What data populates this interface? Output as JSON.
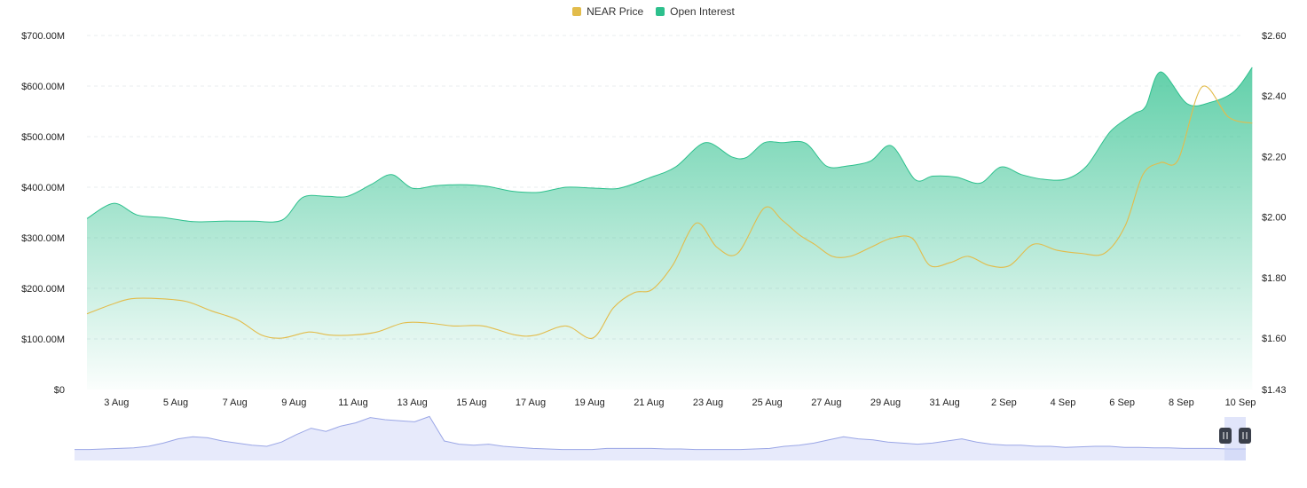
{
  "legend": {
    "price_label": "NEAR Price",
    "oi_label": "Open Interest"
  },
  "colors": {
    "price": "#E2BC4B",
    "open_interest": "#2DC08D",
    "navigator_fill": "#E7EAFB",
    "navigator_line": "#9AA6E6",
    "grid": "#E9ECEF",
    "handle": "#3A3F4B"
  },
  "chart_data": {
    "type": "area",
    "x_labels": [
      "3 Aug",
      "5 Aug",
      "7 Aug",
      "9 Aug",
      "11 Aug",
      "13 Aug",
      "15 Aug",
      "17 Aug",
      "19 Aug",
      "21 Aug",
      "23 Aug",
      "25 Aug",
      "27 Aug",
      "29 Aug",
      "31 Aug",
      "2 Sep",
      "4 Sep",
      "6 Sep",
      "8 Sep",
      "10 Sep"
    ],
    "x_range_days": [
      0,
      39
    ],
    "left_axis": {
      "ticks": [
        "$700.00M",
        "$600.00M",
        "$500.00M",
        "$400.00M",
        "$300.00M",
        "$200.00M",
        "$100.00M",
        "$0"
      ],
      "ylim": [
        0,
        700
      ]
    },
    "right_axis": {
      "ticks": [
        "$2.60",
        "$2.40",
        "$2.20",
        "$2.00",
        "$1.80",
        "$1.60",
        "$1.43"
      ],
      "ylim": [
        1.43,
        2.6
      ]
    },
    "series": [
      {
        "name": "Open Interest",
        "axis": "left",
        "unit": "$M",
        "x": [
          0,
          0.9,
          1.7,
          2.6,
          3.6,
          4.6,
          5.6,
          6.6,
          7.3,
          8.1,
          8.8,
          9.6,
          10.3,
          11,
          11.8,
          12.6,
          13.5,
          14.4,
          15.3,
          16.2,
          17.2,
          18,
          19,
          19.9,
          20.9,
          21.8,
          22.3,
          22.9,
          23.5,
          24.3,
          25,
          25.7,
          26.5,
          27.2,
          28,
          28.6,
          29.4,
          30.2,
          30.9,
          31.6,
          32.3,
          33.1,
          33.8,
          34.6,
          35.4,
          35.8,
          36.3,
          37.2,
          38,
          38.8,
          39.4
        ],
        "values": [
          338,
          368,
          345,
          340,
          332,
          333,
          333,
          335,
          380,
          382,
          382,
          405,
          425,
          398,
          403,
          405,
          402,
          392,
          390,
          400,
          398,
          398,
          418,
          440,
          488,
          460,
          459,
          488,
          488,
          487,
          442,
          442,
          452,
          482,
          415,
          422,
          420,
          408,
          440,
          425,
          416,
          416,
          442,
          510,
          545,
          560,
          628,
          565,
          568,
          590,
          637
        ]
      },
      {
        "name": "NEAR Price",
        "axis": "right",
        "unit": "$",
        "x": [
          0,
          0.8,
          1.5,
          2.5,
          3.4,
          4.2,
          5.1,
          5.9,
          6.6,
          7.5,
          8.2,
          9,
          9.8,
          10.7,
          11.5,
          12.4,
          13.4,
          14.5,
          15.2,
          16.2,
          17.1,
          17.8,
          18.5,
          19.1,
          19.8,
          20.6,
          21.3,
          22,
          22.9,
          23.5,
          24.1,
          24.6,
          25.2,
          25.8,
          26.5,
          27.2,
          27.9,
          28.5,
          29.2,
          29.8,
          30.5,
          31.2,
          32,
          32.8,
          33.6,
          34.4,
          35.1,
          35.7,
          36.3,
          36.9,
          37.7,
          38.6,
          39.4
        ],
        "values": [
          1.68,
          1.71,
          1.73,
          1.73,
          1.72,
          1.69,
          1.66,
          1.61,
          1.6,
          1.62,
          1.61,
          1.61,
          1.62,
          1.65,
          1.65,
          1.64,
          1.64,
          1.61,
          1.61,
          1.64,
          1.6,
          1.7,
          1.75,
          1.76,
          1.84,
          1.98,
          1.9,
          1.88,
          2.03,
          1.99,
          1.94,
          1.91,
          1.87,
          1.87,
          1.9,
          1.93,
          1.93,
          1.84,
          1.85,
          1.87,
          1.84,
          1.84,
          1.91,
          1.89,
          1.88,
          1.88,
          1.97,
          2.14,
          2.18,
          2.19,
          2.43,
          2.33,
          2.31
        ]
      }
    ],
    "navigator": {
      "x": [
        0,
        0.5,
        1,
        1.5,
        2,
        2.5,
        3,
        3.5,
        4,
        4.5,
        5,
        5.5,
        6,
        6.5,
        7,
        7.5,
        8,
        8.5,
        9,
        9.5,
        10,
        10.5,
        11,
        11.5,
        12,
        12.5,
        13,
        13.5,
        14,
        14.5,
        15,
        15.5,
        16,
        16.5,
        17,
        17.5,
        18,
        18.5,
        19,
        19.5,
        20,
        20.5,
        21,
        21.5,
        22,
        22.5,
        23,
        23.5,
        24,
        24.5,
        25,
        25.5,
        26,
        26.5,
        27,
        27.5,
        28,
        28.5,
        29,
        29.5,
        30,
        30.5,
        31,
        31.5,
        32,
        32.5,
        33,
        33.5,
        34,
        34.5,
        35,
        35.5,
        36,
        36.5,
        37,
        37.5,
        38,
        38.5,
        39,
        39.4
      ],
      "values": [
        2,
        2,
        2.5,
        3,
        3.5,
        5,
        8,
        12,
        14,
        13,
        10,
        8,
        6,
        5,
        9,
        16,
        22,
        19,
        24,
        27,
        32,
        30,
        29,
        28,
        33,
        10,
        7,
        6,
        7,
        5,
        4,
        3,
        2.5,
        2,
        2,
        2,
        3,
        3,
        3,
        3,
        2.5,
        2.5,
        2,
        2,
        2,
        2,
        2.5,
        3,
        5,
        6,
        8,
        11,
        14,
        12,
        11,
        9,
        8,
        7,
        8,
        10,
        12,
        9,
        7,
        6,
        6,
        5,
        5,
        4,
        4.5,
        5,
        5,
        4,
        4,
        3.5,
        3.5,
        3,
        3,
        3,
        2.5,
        2.5
      ]
    },
    "grid": true,
    "legend_position": "top-center"
  }
}
